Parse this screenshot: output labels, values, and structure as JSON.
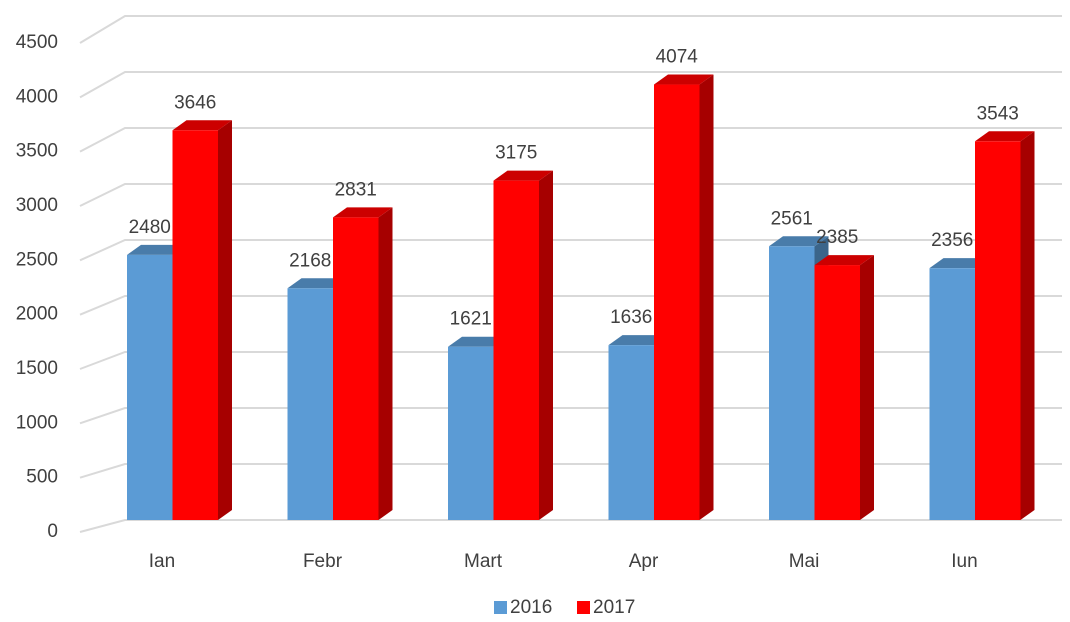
{
  "chart_data": {
    "type": "bar3d",
    "categories": [
      "Ian",
      "Febr",
      "Mart",
      "Apr",
      "Mai",
      "Iun"
    ],
    "series": [
      {
        "name": "2016",
        "color": "#5b9bd5",
        "values": [
          2480,
          2168,
          1621,
          1636,
          2561,
          2356
        ]
      },
      {
        "name": "2017",
        "color": "#ff0000",
        "values": [
          3646,
          2831,
          3175,
          4074,
          2385,
          3543
        ]
      }
    ],
    "ylim": [
      0,
      4500
    ],
    "yticks": [
      0,
      500,
      1000,
      1500,
      2000,
      2500,
      3000,
      3500,
      4000,
      4500
    ],
    "grid": true,
    "legend": "bottom"
  }
}
